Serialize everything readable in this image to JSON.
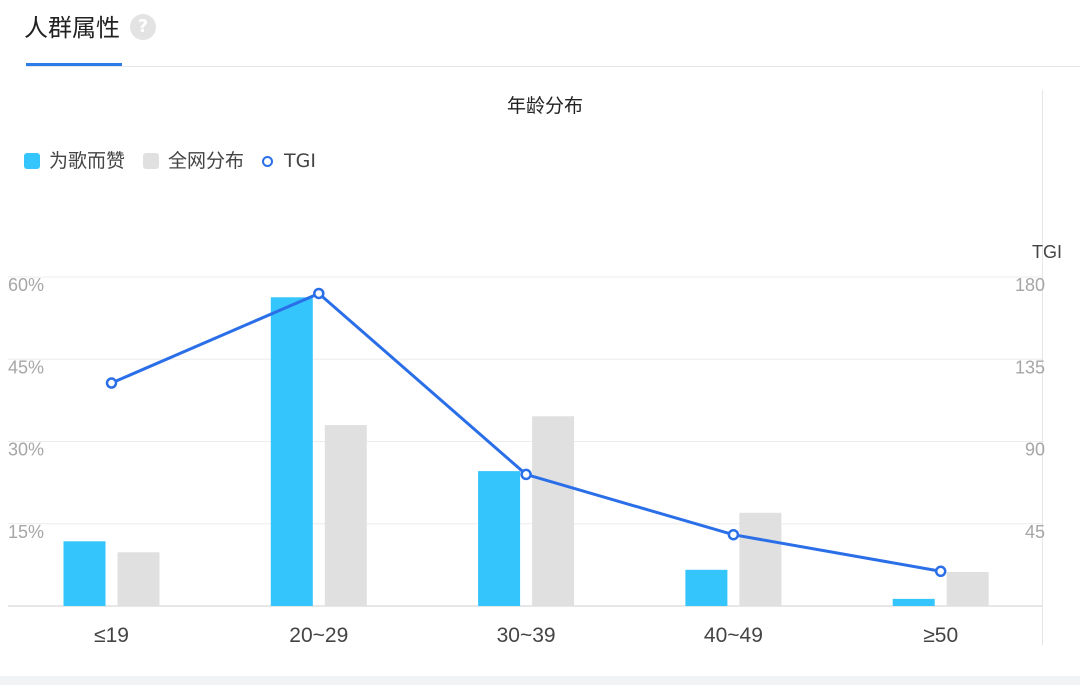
{
  "header": {
    "title": "人群属性",
    "help_glyph": "?",
    "help_icon": "question-circle-icon"
  },
  "chart_data": {
    "type": "bar",
    "title": "年龄分布",
    "categories": [
      "≤19",
      "20~29",
      "30~39",
      "40~49",
      "≥50"
    ],
    "series": [
      {
        "name": "为歌而赞",
        "kind": "bar",
        "axis": "left",
        "color": "#33c5fb",
        "values": [
          11.8,
          56.3,
          24.6,
          6.6,
          1.3
        ]
      },
      {
        "name": "全网分布",
        "kind": "bar",
        "axis": "left",
        "color": "#e0e0e0",
        "values": [
          9.8,
          33.0,
          34.6,
          17.0,
          6.2
        ]
      },
      {
        "name": "TGI",
        "kind": "line",
        "axis": "right",
        "color": "#2b6fe8",
        "values": [
          122,
          171,
          72,
          39,
          19
        ]
      }
    ],
    "y_left": {
      "ticks": [
        "60%",
        "45%",
        "30%",
        "15%"
      ],
      "tick_values": [
        60,
        45,
        30,
        15
      ],
      "min": 0,
      "max": 60
    },
    "y_right": {
      "label": "TGI",
      "ticks": [
        "180",
        "135",
        "90",
        "45"
      ],
      "tick_values": [
        180,
        135,
        90,
        45
      ],
      "min": 0,
      "max": 180
    },
    "grid": true,
    "legend_position": "top-left"
  }
}
